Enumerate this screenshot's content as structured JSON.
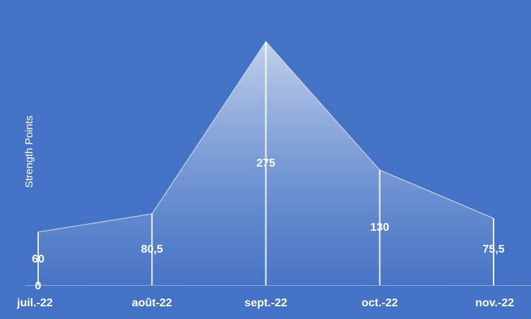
{
  "chart_data": {
    "type": "area",
    "categories": [
      "juil.-22",
      "août-22",
      "sept.-22",
      "oct.-22",
      "nov.-22"
    ],
    "values": [
      60,
      80.5,
      275,
      130,
      75.5
    ],
    "value_labels": [
      "60",
      "80,5",
      "275",
      "130",
      "75,5"
    ],
    "ylabel": "Strength Points",
    "y_zero_label": "0",
    "ylim": [
      0,
      275
    ],
    "grid": false,
    "legend": "none",
    "colors": {
      "background": "#4472c4",
      "area_top": "#c9d5ee",
      "area_bottom": "#4a77c7",
      "line": "#dfe7f6",
      "axis": "#8eaadb",
      "text": "#ffffff"
    }
  }
}
